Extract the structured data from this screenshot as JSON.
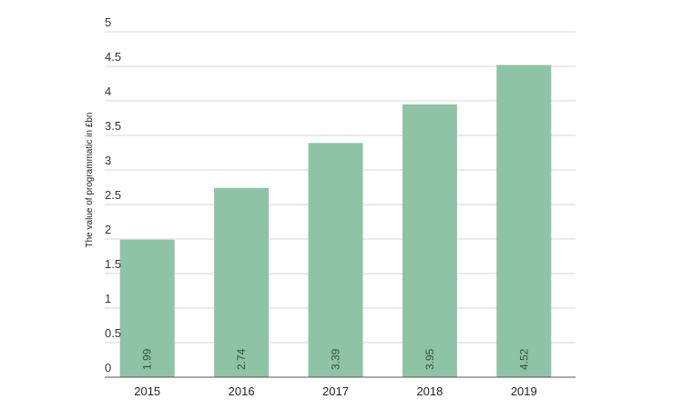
{
  "chart_data": {
    "type": "bar",
    "title": "",
    "xlabel": "",
    "ylabel": "The value of programmatic in £bn",
    "categories": [
      "2015",
      "2016",
      "2017",
      "2018",
      "2019"
    ],
    "values": [
      1.99,
      2.74,
      3.39,
      3.95,
      4.52
    ],
    "value_labels": [
      "1.99",
      "2.74",
      "3.39",
      "3.95",
      "4.52"
    ],
    "ylim": [
      0,
      5
    ],
    "yticks": [
      0,
      0.5,
      1,
      1.5,
      2,
      2.5,
      3,
      3.5,
      4,
      4.5,
      5
    ],
    "ytick_labels": [
      "0",
      "0.5",
      "1",
      "1.5",
      "2",
      "2.5",
      "3",
      "3.5",
      "4",
      "4.5",
      "5"
    ],
    "grid": true,
    "legend": "none",
    "colors": {
      "bar": "#8fc3a6",
      "grid": "#d6d6d6",
      "axis": "#555555"
    }
  }
}
